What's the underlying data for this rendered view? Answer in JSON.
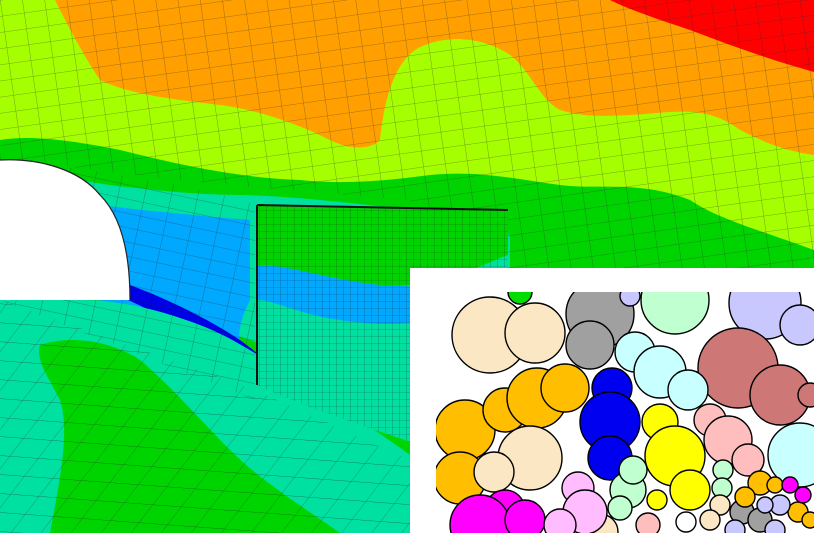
{
  "figure": {
    "panels": [
      {
        "name": "tunnel-fe-mesh",
        "kind": "finite element mesh with contour fill"
      },
      {
        "name": "particle-packing-inset",
        "kind": "circle packing inset"
      }
    ],
    "contour_colors": [
      "#ff0000",
      "#ffa000",
      "#a6ff00",
      "#00d400",
      "#00e0a0",
      "#00a8ff",
      "#0000e6"
    ],
    "particle_colors": [
      "#fbe7c3",
      "#a0a0a0",
      "#c0ffd0",
      "#c8c8ff",
      "#cd7777",
      "#ffbf00",
      "#0000f0",
      "#ffff00",
      "#c8ffff",
      "#ffbebe",
      "#ff00ff",
      "#ffbcff",
      "#00dd00",
      "#ffffff"
    ]
  }
}
